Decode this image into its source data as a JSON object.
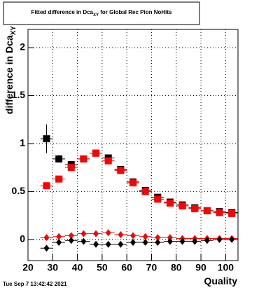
{
  "chart_data": {
    "type": "errorbar",
    "title": "Fitted difference in Dca",
    "title_sub": "XY",
    "title_rest": " for Global Rec Pion NoHits",
    "y_label": "difference in Dca",
    "y_label_sub": "XY",
    "x_label": "Quality",
    "timestamp": "Tue Sep  7 13:42:42 2021",
    "x": [
      27.5,
      32.5,
      37.5,
      42.5,
      47.5,
      52.5,
      57.5,
      62.5,
      67.5,
      72.5,
      77.5,
      82.5,
      87.5,
      92.5,
      97.5,
      102.5
    ],
    "xerr": 2.5,
    "series": [
      {
        "marker": "square",
        "color": "#000000",
        "values": [
          1.05,
          0.84,
          0.78,
          0.84,
          0.9,
          0.85,
          0.73,
          0.6,
          0.51,
          0.44,
          0.39,
          0.36,
          0.33,
          0.3,
          0.29,
          0.28
        ],
        "errors": [
          0.15,
          0.04,
          0.02,
          0.02,
          0.02,
          0.02,
          0.02,
          0.02,
          0.01,
          0.01,
          0.01,
          0.01,
          0.01,
          0.01,
          0.01,
          0.01
        ]
      },
      {
        "marker": "square",
        "color": "#ff0000",
        "values": [
          0.56,
          0.63,
          0.75,
          0.84,
          0.9,
          0.82,
          0.72,
          0.59,
          0.5,
          0.42,
          0.38,
          0.35,
          0.32,
          0.3,
          0.28,
          0.27
        ],
        "errors": [
          0.01,
          0.01,
          0.01,
          0.01,
          0.01,
          0.01,
          0.01,
          0.01,
          0.01,
          0.01,
          0.01,
          0.01,
          0.01,
          0.01,
          0.01,
          0.01
        ]
      },
      {
        "marker": "diamond",
        "color": "#ff0000",
        "values": [
          0.02,
          0.03,
          0.04,
          0.06,
          0.06,
          0.07,
          0.05,
          0.04,
          0.03,
          0.02,
          0.02,
          0.01,
          0.01,
          0.01,
          0.01,
          0.01
        ],
        "errors": [
          0.01,
          0.01,
          0.01,
          0.01,
          0.01,
          0.01,
          0.01,
          0.01,
          0.01,
          0.01,
          0.01,
          0.01,
          0.01,
          0.01,
          0.01,
          0.01
        ]
      },
      {
        "marker": "diamond",
        "color": "#000000",
        "values": [
          -0.09,
          -0.03,
          -0.01,
          -0.02,
          -0.05,
          -0.05,
          -0.05,
          -0.03,
          -0.03,
          -0.03,
          -0.02,
          -0.02,
          -0.02,
          -0.01,
          0.0,
          0.0
        ],
        "errors": [
          0.02,
          0.01,
          0.01,
          0.01,
          0.01,
          0.01,
          0.01,
          0.01,
          0.01,
          0.01,
          0.01,
          0.01,
          0.01,
          0.01,
          0.01,
          0.01
        ]
      }
    ],
    "xlim": [
      20,
      105
    ],
    "ylim": [
      -0.22,
      2.19
    ],
    "xticks": [
      20,
      30,
      40,
      50,
      60,
      70,
      80,
      90,
      100
    ],
    "yticks": [
      0,
      0.5,
      1,
      1.5,
      2
    ],
    "grid": true
  }
}
